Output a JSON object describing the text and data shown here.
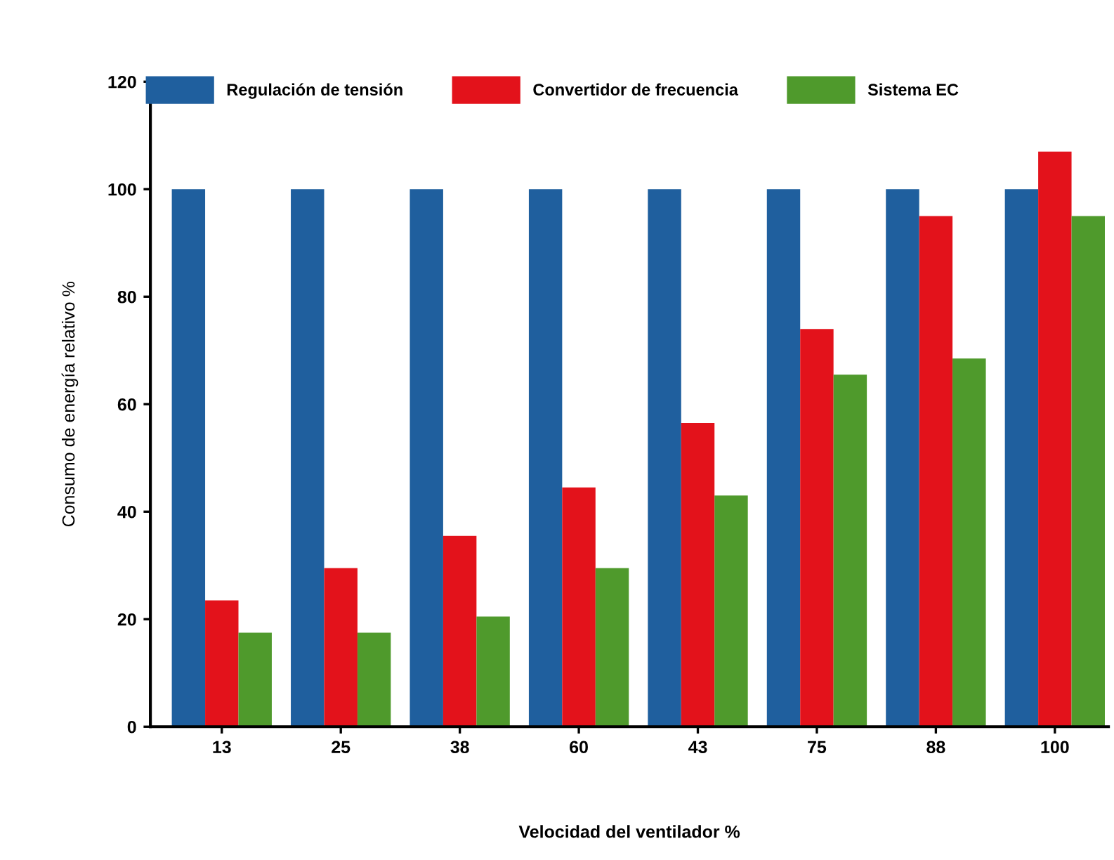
{
  "chart_data": {
    "type": "bar",
    "xlabel": "Velocidad del ventilador %",
    "ylabel": "Consumo de energía relativo %",
    "categories": [
      "13",
      "25",
      "38",
      "60",
      "43",
      "75",
      "88",
      "100"
    ],
    "series": [
      {
        "name": "Regulación de tensión",
        "color": "#1f5f9e",
        "values": [
          100,
          100,
          100,
          100,
          100,
          100,
          100,
          100
        ]
      },
      {
        "name": "Convertidor de frecuencia",
        "color": "#e3121b",
        "values": [
          23.5,
          29.5,
          35.5,
          44.5,
          56.5,
          74,
          95,
          107
        ]
      },
      {
        "name": "Sistema EC",
        "color": "#4f9a2c",
        "values": [
          17.5,
          17.5,
          20.5,
          29.5,
          43,
          65.5,
          68.5,
          95
        ]
      }
    ],
    "ylim": [
      0,
      120
    ],
    "yticks": [
      0,
      20,
      40,
      60,
      80,
      100,
      120
    ],
    "grid": false,
    "legend": "top"
  }
}
